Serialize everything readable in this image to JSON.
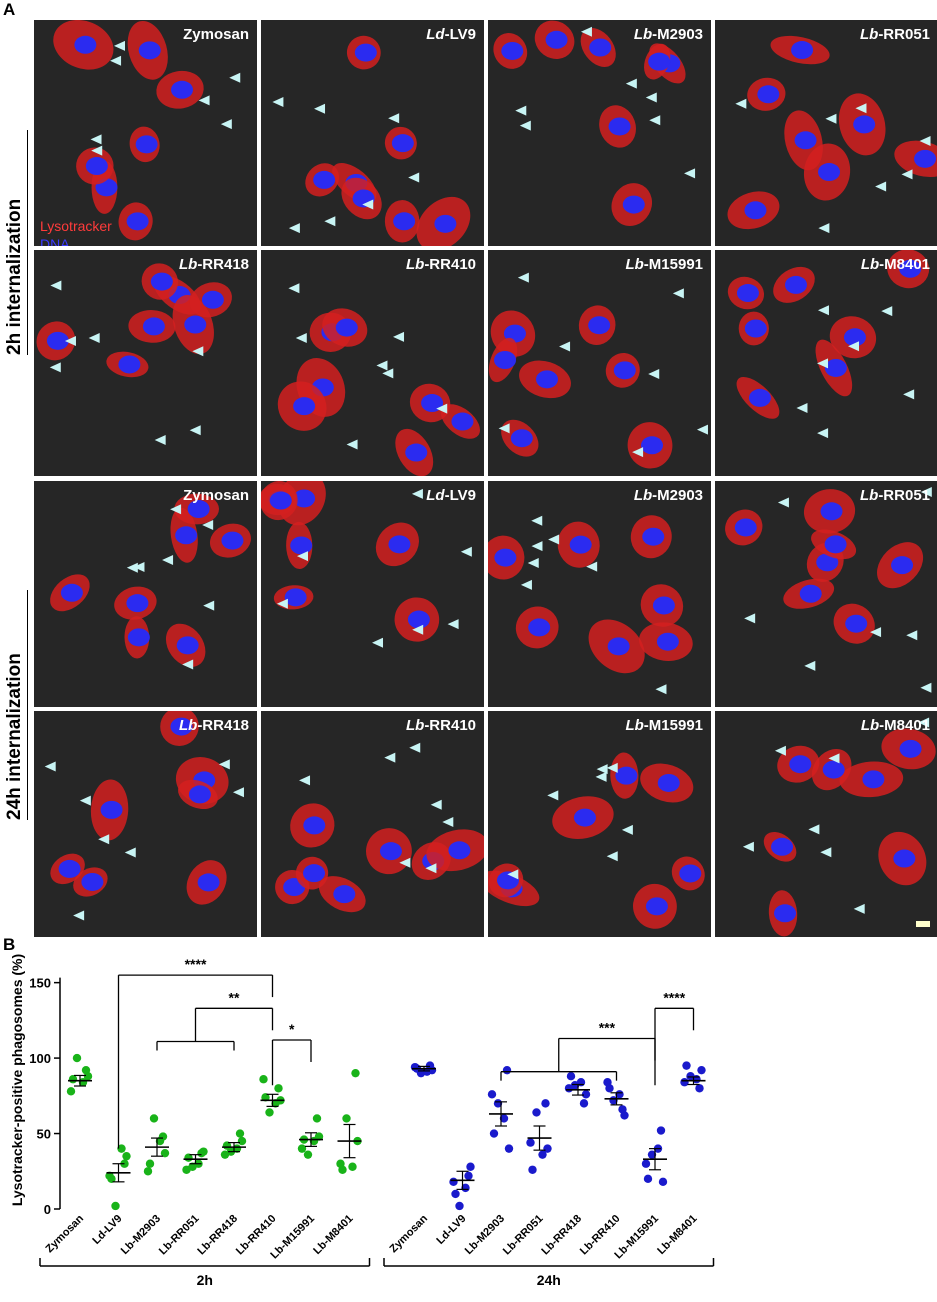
{
  "panel_a_label": "A",
  "panel_b_label": "B",
  "legend": {
    "lysotracker": "Lysotracker",
    "dna": "DNA",
    "lysotracker_color": "#ff3b3b",
    "dna_color": "#3a3aff"
  },
  "row_labels": {
    "top": "2h internalization",
    "bottom": "24h internalization"
  },
  "micrographs": {
    "h2": [
      {
        "prefix": "",
        "suffix": "Zymosan"
      },
      {
        "prefix": "Ld",
        "suffix": "-LV9"
      },
      {
        "prefix": "Lb",
        "suffix": "-M2903"
      },
      {
        "prefix": "Lb",
        "suffix": "-RR051"
      },
      {
        "prefix": "Lb",
        "suffix": "-RR418"
      },
      {
        "prefix": "Lb",
        "suffix": "-RR410"
      },
      {
        "prefix": "Lb",
        "suffix": "-M15991"
      },
      {
        "prefix": "Lb",
        "suffix": "-M8401"
      }
    ],
    "h24": [
      {
        "prefix": "",
        "suffix": "Zymosan"
      },
      {
        "prefix": "Ld",
        "suffix": "-LV9"
      },
      {
        "prefix": "Lb",
        "suffix": "-M2903"
      },
      {
        "prefix": "Lb",
        "suffix": "-RR051"
      },
      {
        "prefix": "Lb",
        "suffix": "-RR418"
      },
      {
        "prefix": "Lb",
        "suffix": "-RR410"
      },
      {
        "prefix": "Lb",
        "suffix": "-M15991"
      },
      {
        "prefix": "Lb",
        "suffix": "-M8401"
      }
    ]
  },
  "chart_data": {
    "type": "scatter",
    "title": "",
    "ylabel": "Lysotracker-positive phagosomes (%)",
    "ylim": [
      0,
      150
    ],
    "yticks": [
      0,
      50,
      100,
      150
    ],
    "grid": false,
    "categories": [
      "Zymosan",
      "Ld-LV9",
      "Lb-M2903",
      "Lb-RR051",
      "Lb-RR418",
      "Lb-RR410",
      "Lb-M15991",
      "Lb-M8401"
    ],
    "groups": [
      {
        "name": "2h",
        "color": "#19b319",
        "points": [
          [
            86,
            92,
            100,
            88,
            78,
            84
          ],
          [
            20,
            30,
            2,
            35,
            22,
            40
          ],
          [
            30,
            48,
            60,
            37,
            25,
            45
          ],
          [
            34,
            37,
            28,
            38,
            26,
            30
          ],
          [
            42,
            50,
            38,
            45,
            36,
            40
          ],
          [
            74,
            80,
            64,
            72,
            86,
            70
          ],
          [
            46,
            60,
            36,
            48,
            40,
            45
          ],
          [
            26,
            90,
            60,
            45,
            30,
            28
          ]
        ],
        "means": [
          85,
          24,
          41,
          33,
          41,
          72,
          46,
          45
        ],
        "sem": [
          3.5,
          6,
          6,
          3,
          3,
          4,
          4.5,
          11
        ]
      },
      {
        "name": "24h",
        "color": "#1a1acc",
        "points": [
          [
            93,
            95,
            90,
            92,
            94,
            91
          ],
          [
            10,
            22,
            2,
            28,
            18,
            14
          ],
          [
            50,
            92,
            70,
            40,
            76,
            60
          ],
          [
            26,
            70,
            64,
            40,
            44,
            36
          ],
          [
            88,
            70,
            82,
            76,
            80,
            84
          ],
          [
            80,
            66,
            72,
            62,
            84,
            76
          ],
          [
            20,
            52,
            36,
            18,
            30,
            40
          ],
          [
            95,
            80,
            88,
            92,
            84,
            86
          ]
        ],
        "means": [
          93,
          19,
          63,
          47,
          79,
          73,
          33,
          85
        ],
        "sem": [
          1.5,
          6,
          8,
          8,
          3.5,
          4,
          7,
          2.5
        ]
      }
    ],
    "significance": [
      {
        "label": "****",
        "group": "2h",
        "from": "Ld-LV9",
        "to": "Lb-RR410",
        "y": 155
      },
      {
        "label": "**",
        "group": "2h",
        "from_bracket": [
          "Lb-M2903",
          "Lb-RR418"
        ],
        "to": "Lb-RR410",
        "y": 133
      },
      {
        "label": "*",
        "group": "2h",
        "from": "Lb-RR410",
        "to": "Lb-M15991",
        "y": 112
      },
      {
        "label": "****",
        "group": "24h",
        "from": "Lb-M15991",
        "to": "Lb-M8401",
        "y": 133
      },
      {
        "label": "***",
        "group": "24h",
        "from_bracket": [
          "Lb-M2903",
          "Lb-RR410"
        ],
        "to": "Lb-M15991",
        "y": 113
      }
    ]
  }
}
